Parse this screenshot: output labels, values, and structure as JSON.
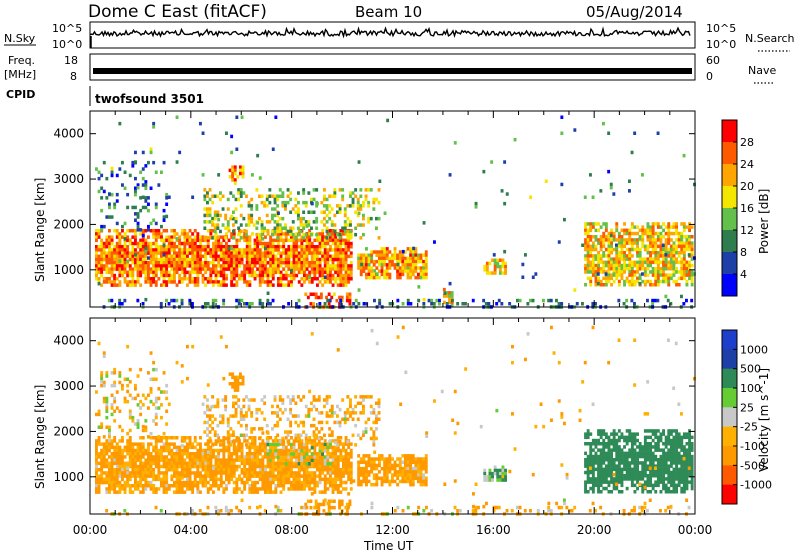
{
  "header": {
    "station": "Dome C East (fitACF)",
    "beam": "Beam 10",
    "date": "05/Aug/2014"
  },
  "colors": {
    "power": [
      "#0000ff",
      "#1f3fa8",
      "#2e7d4f",
      "#63c04a",
      "#f5e600",
      "#ffa500",
      "#ff5a00",
      "#ff0000"
    ],
    "velocity": [
      "#ff0000",
      "#ff5a00",
      "#ff9900",
      "#ffb000",
      "#c8c8c8",
      "#66cc33",
      "#2e8b57",
      "#1f3fa8",
      "#1e3ecc"
    ]
  },
  "chart_data": [
    {
      "type": "line",
      "name": "nsky-nsearch",
      "labels": {
        "left": "N.Sky",
        "right": "N.Search",
        "left_ticks": [
          "10^5",
          "10^0"
        ],
        "right_ticks": [
          "10^5",
          "10^0"
        ]
      }
    },
    {
      "type": "line",
      "name": "freq-nave",
      "labels": {
        "left": "Freq.",
        "left_unit": "[MHz]",
        "right": "Nave",
        "left_ticks": [
          "18",
          "8"
        ],
        "right_ticks": [
          "60",
          "0"
        ]
      }
    },
    {
      "type": "table",
      "name": "cpid",
      "labels": {
        "left": "CPID",
        "program": "twofsound 3501"
      }
    },
    {
      "type": "heatmap",
      "name": "power",
      "title": "",
      "ylabel": "Slant Range [km]",
      "colorbar_label": "Power [dB]",
      "colorbar_ticks": [
        "4",
        "8",
        "12",
        "16",
        "20",
        "24",
        "28"
      ],
      "x_ticks": [
        "00:00",
        "04:00",
        "08:00",
        "12:00",
        "16:00",
        "20:00",
        "00:00"
      ],
      "y_ticks": [
        "1000",
        "2000",
        "3000",
        "4000"
      ],
      "xlim_hours": [
        0,
        24
      ],
      "ylim_km": [
        180,
        4500
      ],
      "scatter_regions": [
        {
          "t0": 0.2,
          "t1": 10.4,
          "r0": 650,
          "r1": 1900,
          "power": 24,
          "density": 0.9
        },
        {
          "t0": 10.6,
          "t1": 13.3,
          "r0": 800,
          "r1": 1500,
          "power": 22,
          "density": 0.85
        },
        {
          "t0": 15.6,
          "t1": 16.5,
          "r0": 900,
          "r1": 1250,
          "power": 20,
          "density": 0.8
        },
        {
          "t0": 19.6,
          "t1": 23.9,
          "r0": 650,
          "r1": 2050,
          "power": 20,
          "density": 0.85
        },
        {
          "t0": 5.5,
          "t1": 6.1,
          "r0": 2900,
          "r1": 3300,
          "power": 24,
          "density": 0.7
        },
        {
          "t0": 4.5,
          "t1": 11.5,
          "r0": 1700,
          "r1": 2800,
          "power": 16,
          "density": 0.3
        },
        {
          "t0": 0.2,
          "t1": 3.0,
          "r0": 1850,
          "r1": 3400,
          "power": 8,
          "density": 0.18
        },
        {
          "t0": 8.5,
          "t1": 10.3,
          "r0": 200,
          "r1": 500,
          "power": 26,
          "density": 0.5
        },
        {
          "t0": 14.0,
          "t1": 14.4,
          "r0": 200,
          "r1": 600,
          "power": 20,
          "density": 0.6
        },
        {
          "t0": 0.5,
          "t1": 24.0,
          "r0": 180,
          "r1": 360,
          "power": 8,
          "density": 0.25
        },
        {
          "t0": 0.3,
          "t1": 24.0,
          "r0": 360,
          "r1": 4400,
          "power": 10,
          "density": 0.01
        }
      ]
    },
    {
      "type": "heatmap",
      "name": "velocity",
      "title": "",
      "ylabel": "Slant Range [km]",
      "xlabel": "Time UT",
      "colorbar_label": "Velocity [m s^-1]",
      "colorbar_ticks": [
        "1000",
        "500",
        "100",
        "25",
        "-25",
        "-100",
        "-500",
        "-1000"
      ],
      "x_ticks": [
        "00:00",
        "04:00",
        "08:00",
        "12:00",
        "16:00",
        "20:00",
        "00:00"
      ],
      "y_ticks": [
        "1000",
        "2000",
        "3000",
        "4000"
      ],
      "xlim_hours": [
        0,
        24
      ],
      "ylim_km": [
        180,
        4500
      ],
      "scatter_regions": [
        {
          "t0": 0.2,
          "t1": 10.4,
          "r0": 650,
          "r1": 1900,
          "vel": -150,
          "density": 0.9
        },
        {
          "t0": 10.6,
          "t1": 13.3,
          "r0": 800,
          "r1": 1500,
          "vel": -150,
          "density": 0.85
        },
        {
          "t0": 15.6,
          "t1": 16.5,
          "r0": 900,
          "r1": 1250,
          "vel": 80,
          "density": 0.8
        },
        {
          "t0": 19.6,
          "t1": 23.9,
          "r0": 650,
          "r1": 2050,
          "vel": 300,
          "density": 0.85
        },
        {
          "t0": 5.5,
          "t1": 6.1,
          "r0": 2900,
          "r1": 3300,
          "vel": -200,
          "density": 0.7
        },
        {
          "t0": 4.5,
          "t1": 11.5,
          "r0": 1700,
          "r1": 2800,
          "vel": -100,
          "density": 0.3
        },
        {
          "t0": 0.2,
          "t1": 3.0,
          "r0": 1850,
          "r1": 3400,
          "vel": -60,
          "density": 0.18
        },
        {
          "t0": 7.0,
          "t1": 9.5,
          "r0": 1300,
          "r1": 1750,
          "vel": 0,
          "density": 0.4
        },
        {
          "t0": 8.5,
          "t1": 10.3,
          "r0": 200,
          "r1": 500,
          "vel": -200,
          "density": 0.5
        },
        {
          "t0": 0.5,
          "t1": 24.0,
          "r0": 180,
          "r1": 360,
          "vel": -80,
          "density": 0.2
        },
        {
          "t0": 0.3,
          "t1": 24.0,
          "r0": 360,
          "r1": 4400,
          "vel": -100,
          "density": 0.01
        }
      ]
    }
  ]
}
